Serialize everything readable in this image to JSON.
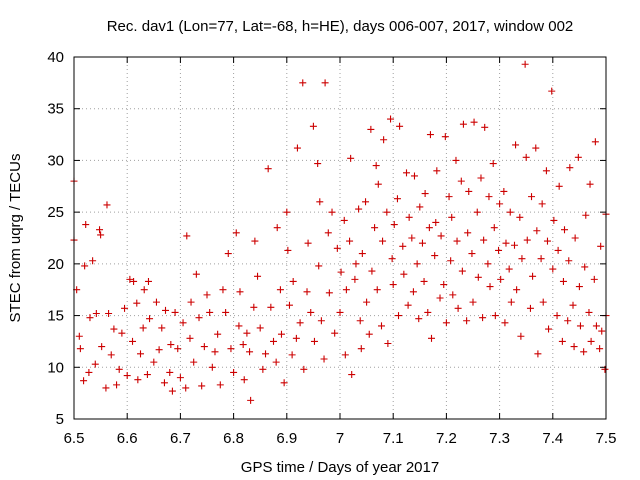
{
  "chart_data": {
    "type": "scatter",
    "title": "Rec. dav1 (Lon=77, Lat=-68, h=HE), days 006-007, 2017, window 002",
    "xlabel": "GPS time / Days of year 2017",
    "ylabel": "STEC from uqrg / TECUs",
    "xlim": [
      6.5,
      7.5
    ],
    "ylim": [
      5,
      40
    ],
    "xticks": [
      6.5,
      6.6,
      6.7,
      6.8,
      6.9,
      7.0,
      7.1,
      7.2,
      7.3,
      7.4,
      7.5
    ],
    "xtick_labels": [
      "6.5",
      "6.6",
      "6.7",
      "6.8",
      "6.9",
      "7",
      "7.1",
      "7.2",
      "7.3",
      "7.4",
      "7.5"
    ],
    "yticks": [
      5,
      10,
      15,
      20,
      25,
      30,
      35,
      40
    ],
    "ytick_labels": [
      "5",
      "10",
      "15",
      "20",
      "25",
      "30",
      "35",
      "40"
    ],
    "grid": true,
    "marker": "+",
    "color": "#cc0000",
    "points": [
      [
        6.5,
        28.0
      ],
      [
        6.5,
        22.3
      ],
      [
        6.505,
        17.5
      ],
      [
        6.51,
        13.0
      ],
      [
        6.512,
        11.8
      ],
      [
        6.518,
        8.7
      ],
      [
        6.52,
        19.8
      ],
      [
        6.522,
        23.8
      ],
      [
        6.528,
        9.5
      ],
      [
        6.53,
        14.8
      ],
      [
        6.535,
        20.3
      ],
      [
        6.54,
        10.3
      ],
      [
        6.542,
        15.2
      ],
      [
        6.548,
        23.3
      ],
      [
        6.55,
        22.8
      ],
      [
        6.552,
        12.0
      ],
      [
        6.56,
        8.0
      ],
      [
        6.562,
        25.7
      ],
      [
        6.565,
        15.2
      ],
      [
        6.57,
        11.2
      ],
      [
        6.575,
        13.7
      ],
      [
        6.58,
        8.3
      ],
      [
        6.585,
        9.8
      ],
      [
        6.59,
        13.3
      ],
      [
        6.595,
        15.7
      ],
      [
        6.6,
        9.2
      ],
      [
        6.605,
        18.5
      ],
      [
        6.61,
        12.5
      ],
      [
        6.612,
        18.3
      ],
      [
        6.618,
        16.2
      ],
      [
        6.62,
        8.8
      ],
      [
        6.625,
        11.3
      ],
      [
        6.63,
        13.8
      ],
      [
        6.632,
        17.5
      ],
      [
        6.638,
        9.3
      ],
      [
        6.64,
        18.3
      ],
      [
        6.642,
        14.7
      ],
      [
        6.65,
        10.5
      ],
      [
        6.655,
        16.3
      ],
      [
        6.66,
        11.7
      ],
      [
        6.665,
        13.8
      ],
      [
        6.67,
        8.5
      ],
      [
        6.672,
        15.5
      ],
      [
        6.68,
        9.5
      ],
      [
        6.682,
        12.2
      ],
      [
        6.685,
        7.7
      ],
      [
        6.69,
        15.3
      ],
      [
        6.695,
        11.8
      ],
      [
        6.7,
        9.0
      ],
      [
        6.705,
        14.3
      ],
      [
        6.71,
        8.0
      ],
      [
        6.712,
        22.7
      ],
      [
        6.718,
        12.8
      ],
      [
        6.72,
        16.3
      ],
      [
        6.725,
        10.5
      ],
      [
        6.73,
        19.0
      ],
      [
        6.735,
        14.8
      ],
      [
        6.74,
        8.2
      ],
      [
        6.745,
        12.0
      ],
      [
        6.75,
        17.0
      ],
      [
        6.755,
        15.3
      ],
      [
        6.76,
        10.0
      ],
      [
        6.765,
        11.5
      ],
      [
        6.77,
        13.2
      ],
      [
        6.775,
        8.3
      ],
      [
        6.78,
        17.5
      ],
      [
        6.785,
        15.3
      ],
      [
        6.79,
        21.0
      ],
      [
        6.795,
        11.8
      ],
      [
        6.8,
        9.5
      ],
      [
        6.805,
        23.0
      ],
      [
        6.81,
        14.0
      ],
      [
        6.812,
        17.3
      ],
      [
        6.818,
        12.2
      ],
      [
        6.82,
        8.8
      ],
      [
        6.825,
        13.3
      ],
      [
        6.83,
        11.5
      ],
      [
        6.832,
        6.8
      ],
      [
        6.838,
        15.8
      ],
      [
        6.84,
        22.2
      ],
      [
        6.845,
        18.8
      ],
      [
        6.85,
        13.8
      ],
      [
        6.855,
        9.8
      ],
      [
        6.86,
        11.3
      ],
      [
        6.865,
        29.2
      ],
      [
        6.87,
        15.8
      ],
      [
        6.875,
        12.5
      ],
      [
        6.88,
        10.5
      ],
      [
        6.882,
        23.5
      ],
      [
        6.888,
        17.5
      ],
      [
        6.89,
        13.2
      ],
      [
        6.895,
        8.5
      ],
      [
        6.9,
        25.0
      ],
      [
        6.902,
        21.3
      ],
      [
        6.905,
        16.0
      ],
      [
        6.91,
        11.2
      ],
      [
        6.912,
        18.3
      ],
      [
        6.918,
        12.8
      ],
      [
        6.92,
        31.2
      ],
      [
        6.925,
        14.3
      ],
      [
        6.93,
        37.5
      ],
      [
        6.932,
        9.8
      ],
      [
        6.938,
        17.3
      ],
      [
        6.94,
        22.0
      ],
      [
        6.945,
        15.3
      ],
      [
        6.95,
        33.3
      ],
      [
        6.952,
        12.5
      ],
      [
        6.958,
        29.7
      ],
      [
        6.96,
        19.8
      ],
      [
        6.962,
        26.0
      ],
      [
        6.965,
        14.5
      ],
      [
        6.97,
        10.8
      ],
      [
        6.972,
        37.5
      ],
      [
        6.978,
        23.0
      ],
      [
        6.98,
        17.2
      ],
      [
        6.985,
        25.0
      ],
      [
        6.99,
        13.3
      ],
      [
        6.995,
        21.5
      ],
      [
        7.0,
        15.3
      ],
      [
        7.002,
        19.2
      ],
      [
        7.008,
        24.2
      ],
      [
        7.01,
        11.2
      ],
      [
        7.012,
        17.5
      ],
      [
        7.018,
        22.2
      ],
      [
        7.02,
        30.2
      ],
      [
        7.022,
        9.3
      ],
      [
        7.028,
        18.5
      ],
      [
        7.03,
        20.0
      ],
      [
        7.035,
        25.3
      ],
      [
        7.038,
        14.5
      ],
      [
        7.04,
        11.8
      ],
      [
        7.042,
        21.0
      ],
      [
        7.048,
        26.0
      ],
      [
        7.05,
        16.3
      ],
      [
        7.055,
        13.2
      ],
      [
        7.058,
        33.0
      ],
      [
        7.06,
        19.3
      ],
      [
        7.065,
        23.5
      ],
      [
        7.068,
        29.5
      ],
      [
        7.07,
        17.5
      ],
      [
        7.072,
        27.7
      ],
      [
        7.078,
        14.0
      ],
      [
        7.08,
        22.2
      ],
      [
        7.082,
        32.0
      ],
      [
        7.088,
        25.0
      ],
      [
        7.09,
        12.3
      ],
      [
        7.095,
        34.0
      ],
      [
        7.098,
        20.5
      ],
      [
        7.1,
        18.0
      ],
      [
        7.102,
        23.8
      ],
      [
        7.108,
        26.3
      ],
      [
        7.11,
        15.0
      ],
      [
        7.112,
        33.3
      ],
      [
        7.118,
        21.7
      ],
      [
        7.12,
        19.0
      ],
      [
        7.125,
        28.8
      ],
      [
        7.128,
        16.0
      ],
      [
        7.13,
        24.5
      ],
      [
        7.135,
        22.5
      ],
      [
        7.138,
        17.3
      ],
      [
        7.14,
        28.5
      ],
      [
        7.145,
        20.0
      ],
      [
        7.148,
        14.7
      ],
      [
        7.15,
        25.5
      ],
      [
        7.155,
        22.0
      ],
      [
        7.158,
        18.3
      ],
      [
        7.16,
        26.8
      ],
      [
        7.165,
        15.3
      ],
      [
        7.168,
        23.5
      ],
      [
        7.17,
        32.5
      ],
      [
        7.172,
        12.8
      ],
      [
        7.178,
        20.8
      ],
      [
        7.18,
        24.0
      ],
      [
        7.182,
        29.0
      ],
      [
        7.188,
        16.7
      ],
      [
        7.19,
        22.7
      ],
      [
        7.195,
        18.0
      ],
      [
        7.198,
        32.3
      ],
      [
        7.2,
        14.3
      ],
      [
        7.205,
        26.5
      ],
      [
        7.208,
        20.3
      ],
      [
        7.21,
        24.5
      ],
      [
        7.212,
        17.0
      ],
      [
        7.218,
        30.0
      ],
      [
        7.22,
        22.2
      ],
      [
        7.222,
        15.7
      ],
      [
        7.228,
        28.0
      ],
      [
        7.23,
        19.3
      ],
      [
        7.232,
        33.5
      ],
      [
        7.238,
        14.5
      ],
      [
        7.24,
        23.0
      ],
      [
        7.242,
        27.0
      ],
      [
        7.248,
        21.0
      ],
      [
        7.25,
        16.3
      ],
      [
        7.252,
        33.7
      ],
      [
        7.258,
        25.0
      ],
      [
        7.26,
        18.7
      ],
      [
        7.265,
        28.3
      ],
      [
        7.268,
        14.8
      ],
      [
        7.27,
        22.3
      ],
      [
        7.272,
        33.2
      ],
      [
        7.278,
        20.0
      ],
      [
        7.28,
        26.5
      ],
      [
        7.282,
        17.8
      ],
      [
        7.288,
        29.7
      ],
      [
        7.29,
        23.5
      ],
      [
        7.292,
        15.0
      ],
      [
        7.298,
        21.3
      ],
      [
        7.3,
        25.8
      ],
      [
        7.302,
        18.5
      ],
      [
        7.308,
        27.0
      ],
      [
        7.31,
        14.3
      ],
      [
        7.312,
        22.0
      ],
      [
        7.318,
        19.5
      ],
      [
        7.32,
        25.0
      ],
      [
        7.322,
        16.3
      ],
      [
        7.328,
        21.8
      ],
      [
        7.33,
        31.5
      ],
      [
        7.332,
        17.5
      ],
      [
        7.338,
        24.5
      ],
      [
        7.34,
        13.0
      ],
      [
        7.342,
        20.5
      ],
      [
        7.348,
        39.3
      ],
      [
        7.35,
        30.3
      ],
      [
        7.352,
        22.3
      ],
      [
        7.358,
        15.7
      ],
      [
        7.36,
        26.5
      ],
      [
        7.362,
        18.8
      ],
      [
        7.368,
        31.2
      ],
      [
        7.37,
        23.2
      ],
      [
        7.372,
        11.3
      ],
      [
        7.378,
        20.5
      ],
      [
        7.38,
        25.8
      ],
      [
        7.382,
        16.3
      ],
      [
        7.388,
        29.0
      ],
      [
        7.39,
        22.2
      ],
      [
        7.392,
        13.7
      ],
      [
        7.398,
        36.7
      ],
      [
        7.4,
        19.5
      ],
      [
        7.402,
        24.2
      ],
      [
        7.408,
        15.0
      ],
      [
        7.41,
        21.3
      ],
      [
        7.412,
        27.5
      ],
      [
        7.418,
        12.5
      ],
      [
        7.42,
        18.3
      ],
      [
        7.422,
        23.3
      ],
      [
        7.428,
        14.5
      ],
      [
        7.43,
        20.3
      ],
      [
        7.432,
        29.3
      ],
      [
        7.438,
        16.0
      ],
      [
        7.44,
        12.0
      ],
      [
        7.442,
        22.5
      ],
      [
        7.448,
        30.3
      ],
      [
        7.45,
        17.8
      ],
      [
        7.452,
        14.0
      ],
      [
        7.458,
        11.5
      ],
      [
        7.46,
        19.7
      ],
      [
        7.462,
        24.7
      ],
      [
        7.468,
        15.3
      ],
      [
        7.47,
        27.7
      ],
      [
        7.472,
        12.5
      ],
      [
        7.478,
        18.5
      ],
      [
        7.48,
        31.8
      ],
      [
        7.482,
        14.0
      ],
      [
        7.488,
        11.8
      ],
      [
        7.49,
        21.7
      ],
      [
        7.492,
        13.5
      ],
      [
        7.498,
        9.8
      ],
      [
        7.5,
        24.8
      ],
      [
        7.5,
        15.0
      ]
    ]
  }
}
